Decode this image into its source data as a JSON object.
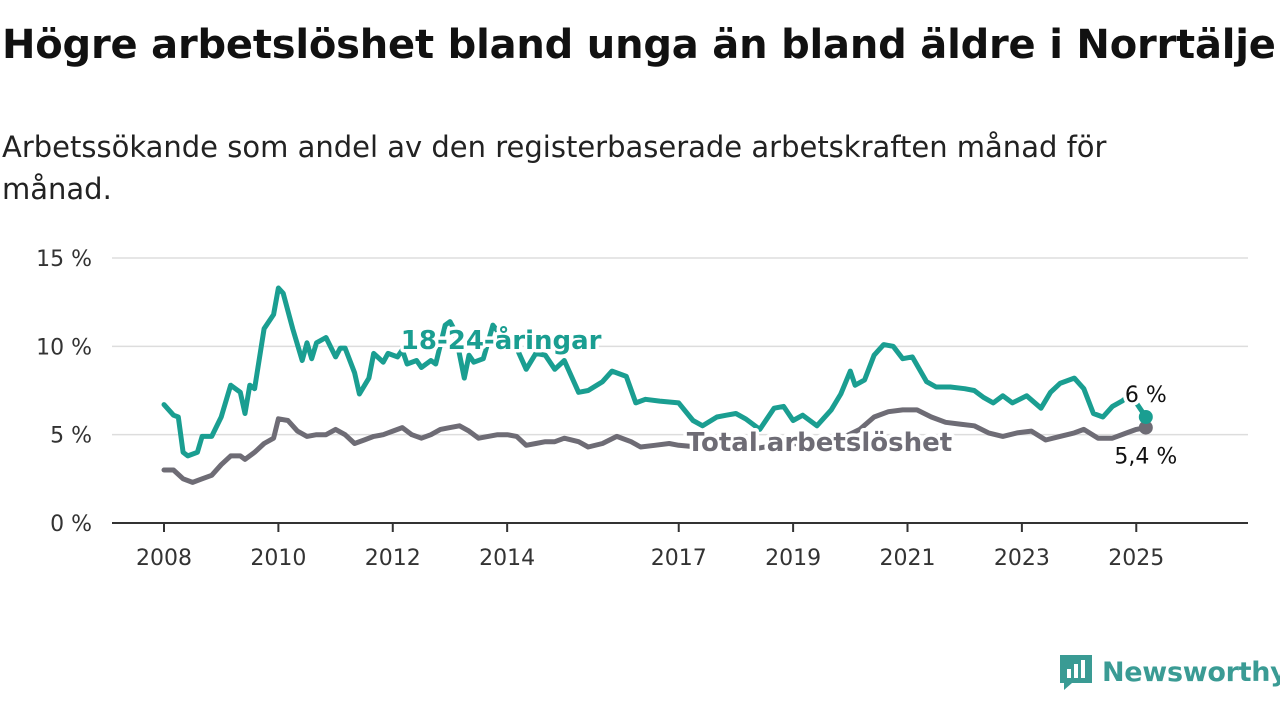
{
  "title": "Högre arbetslöshet bland unga än bland äldre i Norrtälje",
  "subtitle": "Arbetssökande som andel av den registerbaserade arbetskraften månad för månad.",
  "brand": "Newsworthy",
  "colors": {
    "youth": "#1a9e91",
    "total": "#6e6c75",
    "grid": "#dddddd",
    "axis": "#333333",
    "brand": "#3a9b94"
  },
  "chart_data": {
    "type": "line",
    "title": "Högre arbetslöshet bland unga än bland äldre i Norrtälje",
    "subtitle": "Arbetssökande som andel av den registerbaserade arbetskraften månad för månad.",
    "xlim": [
      "2008-01",
      "2026-03"
    ],
    "ylim": [
      0,
      15
    ],
    "y_ticks": [
      0,
      5,
      10,
      15
    ],
    "y_tick_labels": [
      "0 %",
      "5 %",
      "10 %",
      "15 %"
    ],
    "x_ticks": [
      "2008-01",
      "2010-01",
      "2012-01",
      "2014-01",
      "2017-01",
      "2019-01",
      "2021-01",
      "2023-01",
      "2025-01"
    ],
    "x_tick_labels": [
      "2008",
      "2010",
      "2012",
      "2014",
      "2017",
      "2019",
      "2021",
      "2023",
      "2025"
    ],
    "grid": true,
    "series": [
      {
        "name": "18-24-åringar",
        "color": "#1a9e91",
        "end_label": "6 %",
        "points": [
          [
            "2008-01",
            6.7
          ],
          [
            "2008-03",
            6.1
          ],
          [
            "2008-04",
            6.0
          ],
          [
            "2008-05",
            4.0
          ],
          [
            "2008-06",
            3.8
          ],
          [
            "2008-08",
            4.0
          ],
          [
            "2008-09",
            4.9
          ],
          [
            "2008-11",
            4.9
          ],
          [
            "2009-01",
            6.0
          ],
          [
            "2009-03",
            7.8
          ],
          [
            "2009-05",
            7.4
          ],
          [
            "2009-06",
            6.2
          ],
          [
            "2009-07",
            7.8
          ],
          [
            "2009-08",
            7.6
          ],
          [
            "2009-10",
            11.0
          ],
          [
            "2009-12",
            11.8
          ],
          [
            "2010-01",
            13.3
          ],
          [
            "2010-02",
            13.0
          ],
          [
            "2010-04",
            11.0
          ],
          [
            "2010-06",
            9.2
          ],
          [
            "2010-07",
            10.2
          ],
          [
            "2010-08",
            9.3
          ],
          [
            "2010-09",
            10.2
          ],
          [
            "2010-11",
            10.5
          ],
          [
            "2011-01",
            9.4
          ],
          [
            "2011-02",
            9.9
          ],
          [
            "2011-03",
            9.9
          ],
          [
            "2011-05",
            8.5
          ],
          [
            "2011-06",
            7.3
          ],
          [
            "2011-08",
            8.2
          ],
          [
            "2011-09",
            9.6
          ],
          [
            "2011-11",
            9.1
          ],
          [
            "2011-12",
            9.6
          ],
          [
            "2012-02",
            9.4
          ],
          [
            "2012-03",
            9.8
          ],
          [
            "2012-04",
            9.0
          ],
          [
            "2012-06",
            9.2
          ],
          [
            "2012-07",
            8.8
          ],
          [
            "2012-09",
            9.2
          ],
          [
            "2012-10",
            9.0
          ],
          [
            "2012-12",
            11.2
          ],
          [
            "2013-01",
            11.4
          ],
          [
            "2013-02",
            10.9
          ],
          [
            "2013-04",
            8.2
          ],
          [
            "2013-05",
            9.5
          ],
          [
            "2013-06",
            9.1
          ],
          [
            "2013-08",
            9.3
          ],
          [
            "2013-10",
            11.2
          ],
          [
            "2013-12",
            10.5
          ],
          [
            "2014-03",
            9.9
          ],
          [
            "2014-05",
            8.7
          ],
          [
            "2014-07",
            9.6
          ],
          [
            "2014-09",
            9.5
          ],
          [
            "2014-11",
            8.7
          ],
          [
            "2015-01",
            9.2
          ],
          [
            "2015-04",
            7.4
          ],
          [
            "2015-06",
            7.5
          ],
          [
            "2015-09",
            8.0
          ],
          [
            "2015-11",
            8.6
          ],
          [
            "2016-02",
            8.3
          ],
          [
            "2016-04",
            6.8
          ],
          [
            "2016-06",
            7.0
          ],
          [
            "2016-09",
            6.9
          ],
          [
            "2017-01",
            6.8
          ],
          [
            "2017-04",
            5.8
          ],
          [
            "2017-06",
            5.5
          ],
          [
            "2017-09",
            6.0
          ],
          [
            "2017-11",
            6.1
          ],
          [
            "2018-01",
            6.2
          ],
          [
            "2018-03",
            5.9
          ],
          [
            "2018-06",
            5.3
          ],
          [
            "2018-09",
            6.5
          ],
          [
            "2018-11",
            6.6
          ],
          [
            "2019-01",
            5.8
          ],
          [
            "2019-03",
            6.1
          ],
          [
            "2019-06",
            5.5
          ],
          [
            "2019-09",
            6.4
          ],
          [
            "2019-11",
            7.3
          ],
          [
            "2020-01",
            8.6
          ],
          [
            "2020-02",
            7.8
          ],
          [
            "2020-04",
            8.1
          ],
          [
            "2020-06",
            9.5
          ],
          [
            "2020-08",
            10.1
          ],
          [
            "2020-10",
            10.0
          ],
          [
            "2020-12",
            9.3
          ],
          [
            "2021-02",
            9.4
          ],
          [
            "2021-05",
            8.0
          ],
          [
            "2021-07",
            7.7
          ],
          [
            "2021-10",
            7.7
          ],
          [
            "2022-01",
            7.6
          ],
          [
            "2022-03",
            7.5
          ],
          [
            "2022-05",
            7.1
          ],
          [
            "2022-07",
            6.8
          ],
          [
            "2022-09",
            7.2
          ],
          [
            "2022-11",
            6.8
          ],
          [
            "2023-02",
            7.2
          ],
          [
            "2023-05",
            6.5
          ],
          [
            "2023-07",
            7.4
          ],
          [
            "2023-09",
            7.9
          ],
          [
            "2023-12",
            8.2
          ],
          [
            "2024-02",
            7.6
          ],
          [
            "2024-04",
            6.2
          ],
          [
            "2024-06",
            6.0
          ],
          [
            "2024-08",
            6.6
          ],
          [
            "2024-10",
            6.9
          ],
          [
            "2024-12",
            7.3
          ],
          [
            "2025-01",
            6.8
          ],
          [
            "2025-02",
            6.4
          ],
          [
            "2025-03",
            6.0
          ]
        ]
      },
      {
        "name": "Total arbetslöshet",
        "color": "#6e6c75",
        "end_label": "5,4 %",
        "points": [
          [
            "2008-01",
            3.0
          ],
          [
            "2008-03",
            3.0
          ],
          [
            "2008-05",
            2.5
          ],
          [
            "2008-07",
            2.3
          ],
          [
            "2008-09",
            2.5
          ],
          [
            "2008-11",
            2.7
          ],
          [
            "2009-01",
            3.3
          ],
          [
            "2009-03",
            3.8
          ],
          [
            "2009-05",
            3.8
          ],
          [
            "2009-06",
            3.6
          ],
          [
            "2009-08",
            4.0
          ],
          [
            "2009-10",
            4.5
          ],
          [
            "2009-12",
            4.8
          ],
          [
            "2010-01",
            5.9
          ],
          [
            "2010-03",
            5.8
          ],
          [
            "2010-05",
            5.2
          ],
          [
            "2010-07",
            4.9
          ],
          [
            "2010-09",
            5.0
          ],
          [
            "2010-11",
            5.0
          ],
          [
            "2011-01",
            5.3
          ],
          [
            "2011-03",
            5.0
          ],
          [
            "2011-05",
            4.5
          ],
          [
            "2011-07",
            4.7
          ],
          [
            "2011-09",
            4.9
          ],
          [
            "2011-11",
            5.0
          ],
          [
            "2012-01",
            5.2
          ],
          [
            "2012-03",
            5.4
          ],
          [
            "2012-05",
            5.0
          ],
          [
            "2012-07",
            4.8
          ],
          [
            "2012-09",
            5.0
          ],
          [
            "2012-11",
            5.3
          ],
          [
            "2013-01",
            5.4
          ],
          [
            "2013-03",
            5.5
          ],
          [
            "2013-05",
            5.2
          ],
          [
            "2013-07",
            4.8
          ],
          [
            "2013-09",
            4.9
          ],
          [
            "2013-11",
            5.0
          ],
          [
            "2014-01",
            5.0
          ],
          [
            "2014-03",
            4.9
          ],
          [
            "2014-05",
            4.4
          ],
          [
            "2014-07",
            4.5
          ],
          [
            "2014-09",
            4.6
          ],
          [
            "2014-11",
            4.6
          ],
          [
            "2015-01",
            4.8
          ],
          [
            "2015-04",
            4.6
          ],
          [
            "2015-06",
            4.3
          ],
          [
            "2015-09",
            4.5
          ],
          [
            "2015-12",
            4.9
          ],
          [
            "2016-03",
            4.6
          ],
          [
            "2016-05",
            4.3
          ],
          [
            "2016-08",
            4.4
          ],
          [
            "2016-11",
            4.5
          ],
          [
            "2017-01",
            4.4
          ],
          [
            "2017-05",
            4.3
          ],
          [
            "2017-09",
            4.4
          ],
          [
            "2018-01",
            4.3
          ],
          [
            "2018-05",
            4.2
          ],
          [
            "2018-09",
            4.4
          ],
          [
            "2019-01",
            4.5
          ],
          [
            "2019-05",
            4.4
          ],
          [
            "2019-09",
            4.6
          ],
          [
            "2019-12",
            4.9
          ],
          [
            "2020-03",
            5.3
          ],
          [
            "2020-06",
            6.0
          ],
          [
            "2020-09",
            6.3
          ],
          [
            "2020-12",
            6.4
          ],
          [
            "2021-03",
            6.4
          ],
          [
            "2021-06",
            6.0
          ],
          [
            "2021-09",
            5.7
          ],
          [
            "2021-12",
            5.6
          ],
          [
            "2022-03",
            5.5
          ],
          [
            "2022-06",
            5.1
          ],
          [
            "2022-09",
            4.9
          ],
          [
            "2022-12",
            5.1
          ],
          [
            "2023-03",
            5.2
          ],
          [
            "2023-06",
            4.7
          ],
          [
            "2023-09",
            4.9
          ],
          [
            "2023-12",
            5.1
          ],
          [
            "2024-02",
            5.3
          ],
          [
            "2024-05",
            4.8
          ],
          [
            "2024-08",
            4.8
          ],
          [
            "2024-11",
            5.1
          ],
          [
            "2025-01",
            5.3
          ],
          [
            "2025-03",
            5.4
          ]
        ]
      }
    ]
  }
}
